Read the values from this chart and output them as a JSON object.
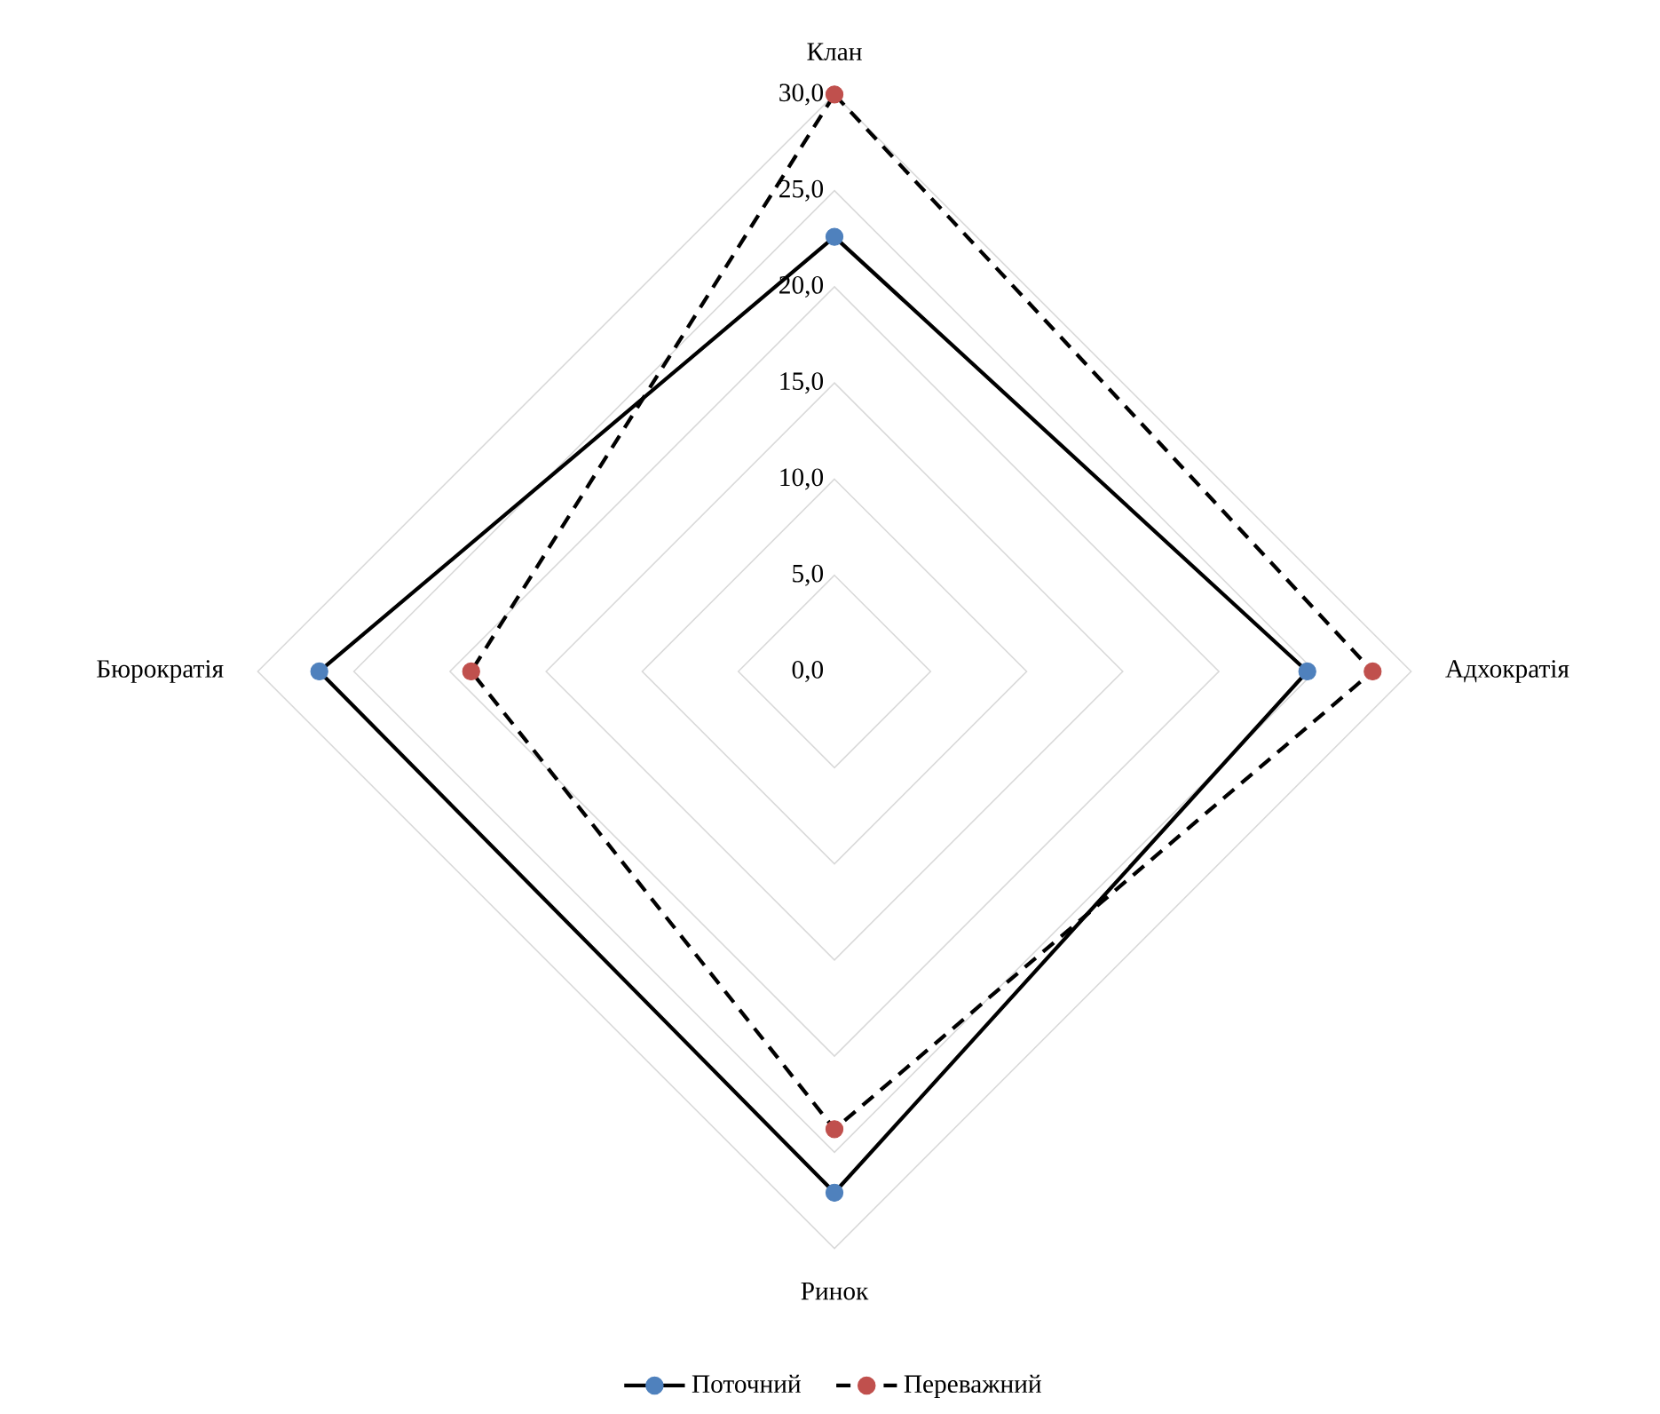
{
  "chart_data": {
    "type": "radar",
    "categories": [
      "Клан",
      "Адхократія",
      "Ринок",
      "Бюрократія"
    ],
    "series": [
      {
        "name": "Поточний",
        "color": "#000000",
        "colors": [
          "#4f81bd",
          "#4f81bd",
          "#4f81bd",
          "#4f81bd"
        ],
        "line_style": "solid",
        "values": [
          22.6,
          24.6,
          27.1,
          26.8
        ]
      },
      {
        "name": "Переважний",
        "color": "#000000",
        "colors": [
          "#c0504d",
          "#c0504d",
          "#c0504d",
          "#c0504d"
        ],
        "line_style": "dashed",
        "values": [
          30.0,
          28.0,
          23.8,
          18.9
        ]
      }
    ],
    "ylim": [
      0,
      30
    ],
    "yticks": [
      {
        "value": 0,
        "label": "0,0"
      },
      {
        "value": 5,
        "label": "5,0"
      },
      {
        "value": 10,
        "label": "10,0"
      },
      {
        "value": 15,
        "label": "15,0"
      },
      {
        "value": 20,
        "label": "20,0"
      },
      {
        "value": 25,
        "label": "25,0"
      },
      {
        "value": 30,
        "label": "30,0"
      }
    ],
    "grid": true,
    "marker": "circle",
    "legend": "bottom"
  }
}
